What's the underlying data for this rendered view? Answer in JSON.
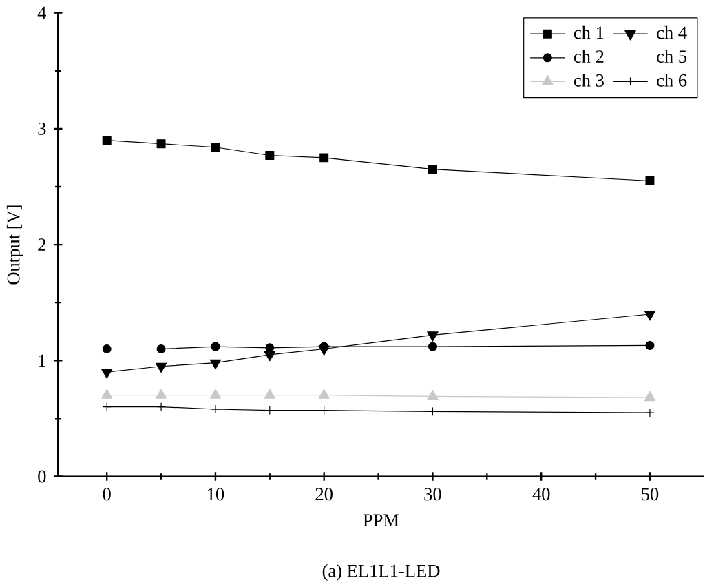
{
  "chart_data": {
    "type": "line",
    "title": "(a) EL1L1-LED",
    "xlabel": "PPM",
    "ylabel": "Output [V]",
    "x": [
      0,
      5,
      10,
      15,
      20,
      30,
      50
    ],
    "series": [
      {
        "name": "ch 1",
        "color": "#000000",
        "marker": "square",
        "values": [
          2.9,
          2.87,
          2.84,
          2.77,
          2.75,
          2.65,
          2.55
        ]
      },
      {
        "name": "ch 2",
        "color": "#000000",
        "marker": "circle",
        "values": [
          1.1,
          1.1,
          1.12,
          1.11,
          1.12,
          1.12,
          1.13
        ]
      },
      {
        "name": "ch 3",
        "color": "#c8c8c8",
        "marker": "triangle",
        "values": [
          0.7,
          0.7,
          0.7,
          0.7,
          0.7,
          0.69,
          0.68
        ]
      },
      {
        "name": "ch 4",
        "color": "#000000",
        "marker": "triangle",
        "values": [
          0.9,
          0.95,
          0.98,
          1.05,
          1.1,
          1.22,
          1.4
        ]
      },
      {
        "name": "ch 5",
        "marker": "none",
        "values": [
          null,
          null,
          null,
          null,
          null,
          null,
          null
        ]
      },
      {
        "name": "ch 6",
        "color": "#000000",
        "marker": "cross",
        "values": [
          0.6,
          0.6,
          0.58,
          0.57,
          0.57,
          0.56,
          0.55
        ]
      }
    ],
    "xlim": [
      -4.5,
      55
    ],
    "ylim": [
      0,
      4
    ],
    "xticks": [
      0,
      10,
      20,
      30,
      40,
      50
    ],
    "yticks": [
      0,
      1,
      2,
      3,
      4
    ],
    "legend": "top right",
    "grid": false
  }
}
